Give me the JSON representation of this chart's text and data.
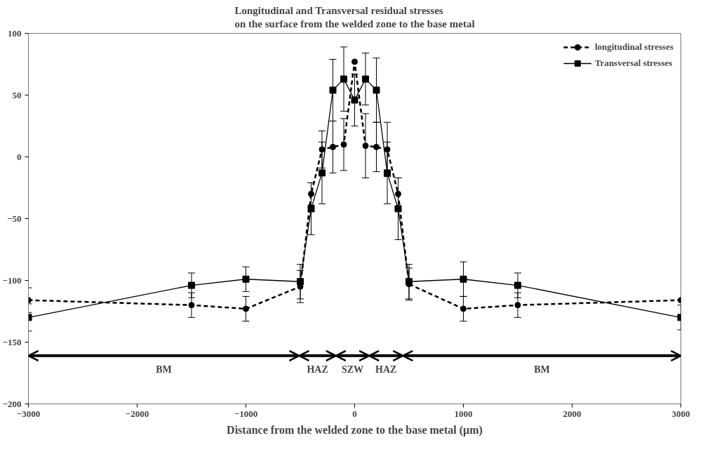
{
  "chart_data": {
    "type": "line",
    "title": "Longitudinal and Transversal residual stresses\non the surface from the welded zone to the base metal",
    "xlabel": "Distance from the welded zone to the base metal (µm)",
    "x": [
      -3000,
      -1500,
      -1000,
      -500,
      -400,
      -300,
      -200,
      -100,
      0,
      100,
      200,
      300,
      400,
      500,
      1000,
      1500,
      3000
    ],
    "series": [
      {
        "name": "longitudinal stresses",
        "color": "#000000",
        "marker": "circle",
        "line_style": "dashed",
        "values": [
          -116,
          -120,
          -123,
          -105,
          -30,
          6,
          8,
          10,
          77,
          9,
          8,
          6,
          -30,
          -103,
          -123,
          -120,
          -116
        ],
        "errors": [
          10,
          10,
          10,
          13,
          9,
          15,
          21,
          21,
          null,
          26,
          20,
          22,
          13,
          13,
          10,
          10,
          null
        ]
      },
      {
        "name": "Transversal stresses",
        "color": "#000000",
        "marker": "square",
        "line_style": "solid",
        "values": [
          -130,
          -104,
          -99,
          -101,
          -42,
          -13,
          54,
          63,
          46,
          63,
          54,
          -13,
          -42,
          -101,
          -99,
          -104,
          -130
        ],
        "errors": [
          11,
          10,
          10,
          14,
          21,
          25,
          25,
          26,
          21,
          21,
          26,
          25,
          25,
          14,
          14,
          10,
          10
        ]
      }
    ],
    "annotations": [
      "BM",
      "HAZ",
      "SZW",
      "HAZ",
      "BM"
    ],
    "xlim": [
      -3000,
      3000
    ],
    "ylim": [
      -200,
      100
    ],
    "xticks": [
      -3000,
      -2000,
      -1000,
      0,
      1000,
      2000,
      3000
    ],
    "yticks": [
      -200,
      -150,
      -100,
      -50,
      0,
      50,
      100
    ],
    "grid": false,
    "legend": "top right"
  }
}
